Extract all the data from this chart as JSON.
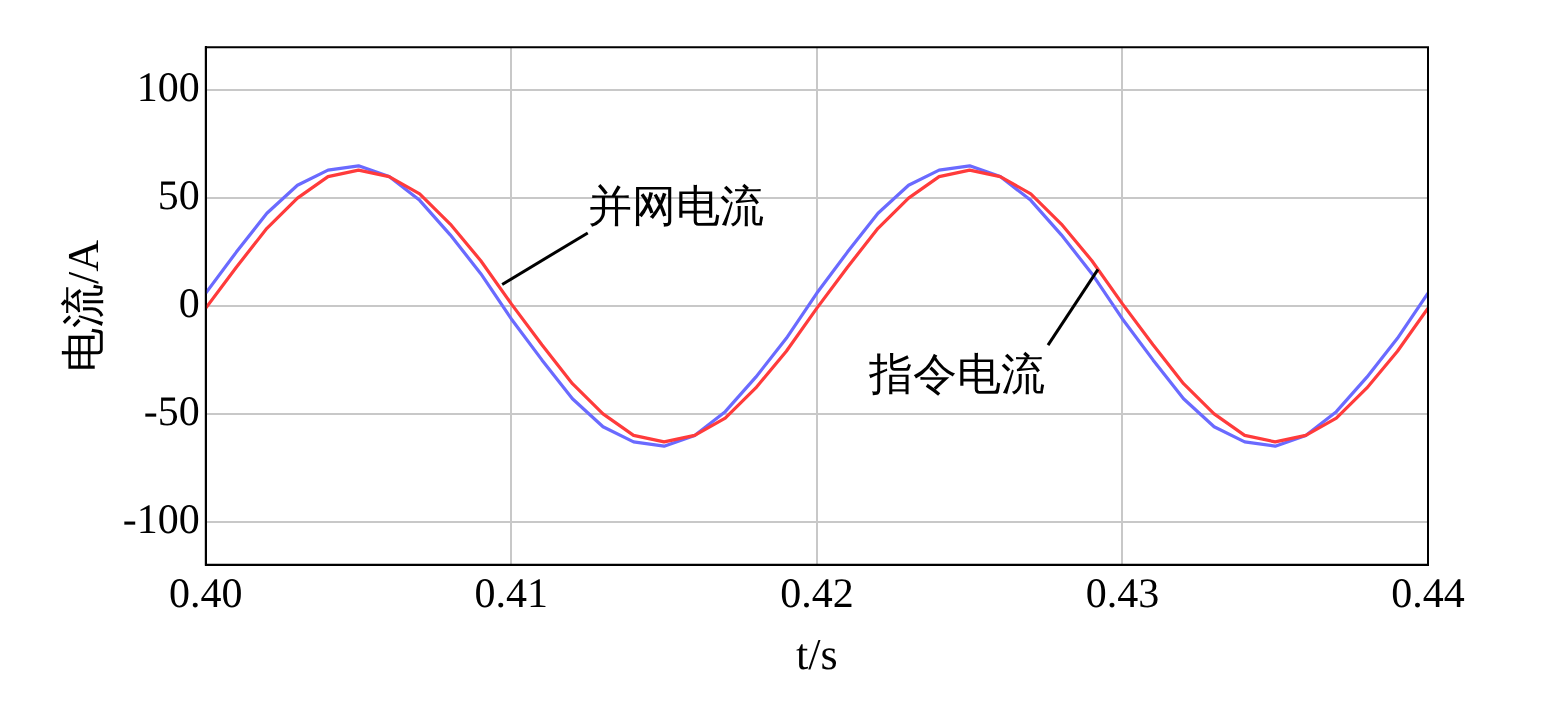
{
  "chart_data": {
    "type": "line",
    "xlabel": "t/s",
    "ylabel": "电流/A",
    "x": [
      0.4,
      0.401,
      0.402,
      0.403,
      0.404,
      0.405,
      0.406,
      0.407,
      0.408,
      0.409,
      0.41,
      0.411,
      0.412,
      0.413,
      0.414,
      0.415,
      0.416,
      0.417,
      0.418,
      0.419,
      0.42,
      0.421,
      0.422,
      0.423,
      0.424,
      0.425,
      0.426,
      0.427,
      0.428,
      0.429,
      0.43,
      0.431,
      0.432,
      0.433,
      0.434,
      0.435,
      0.436,
      0.437,
      0.438,
      0.439,
      0.44
    ],
    "series": [
      {
        "name": "并网电流",
        "color": "#ff3b3b",
        "values": [
          -1,
          18,
          36,
          50,
          60,
          63,
          60,
          52,
          38,
          21,
          1,
          -18,
          -36,
          -50,
          -60,
          -63,
          -60,
          -52,
          -38,
          -21,
          -1,
          18,
          36,
          50,
          60,
          63,
          60,
          52,
          38,
          21,
          1,
          -18,
          -36,
          -50,
          -60,
          -63,
          -60,
          -52,
          -38,
          -21,
          -1
        ]
      },
      {
        "name": "指令电流",
        "color": "#6a6aff",
        "values": [
          6,
          25,
          43,
          56,
          63,
          65,
          60,
          49,
          33,
          15,
          -6,
          -25,
          -43,
          -56,
          -63,
          -65,
          -60,
          -49,
          -33,
          -15,
          6,
          25,
          43,
          56,
          63,
          65,
          60,
          49,
          33,
          15,
          -6,
          -25,
          -43,
          -56,
          -63,
          -65,
          -60,
          -49,
          -33,
          -15,
          6
        ]
      }
    ],
    "xlim": [
      0.4,
      0.44
    ],
    "xticks": [
      {
        "value": 0.4,
        "label": "0.40"
      },
      0.41,
      0.42,
      0.43,
      {
        "value": 0.44,
        "label": "0.44"
      }
    ],
    "ylim": [
      -120,
      120
    ],
    "yticks": [
      -100,
      -50,
      0,
      50,
      100
    ],
    "grid": true,
    "marker": "none",
    "line_style": "solid",
    "legend": false
  }
}
